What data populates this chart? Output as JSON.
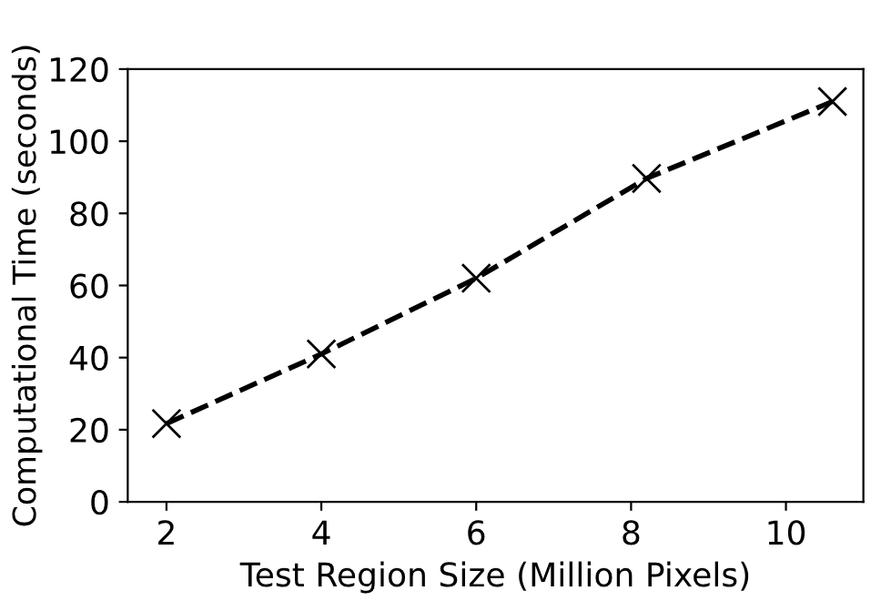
{
  "chart_data": {
    "type": "line",
    "xlabel": "Test Region Size (Million Pixels)",
    "ylabel": "Computational Time (seconds)",
    "x": [
      2,
      4,
      6,
      8.2,
      10.6
    ],
    "series": [
      {
        "color": "#000000",
        "values": [
          21.7,
          41,
          62,
          89.7,
          111
        ]
      }
    ],
    "marker": "cross",
    "line_style": "dashed",
    "xlim": [
      1.5,
      11.0
    ],
    "xticks": [
      2,
      4,
      6,
      8,
      10
    ],
    "ylim": [
      0,
      120
    ],
    "yticks": [
      0,
      20,
      40,
      60,
      80,
      100,
      120
    ],
    "grid": false,
    "legend": false
  }
}
